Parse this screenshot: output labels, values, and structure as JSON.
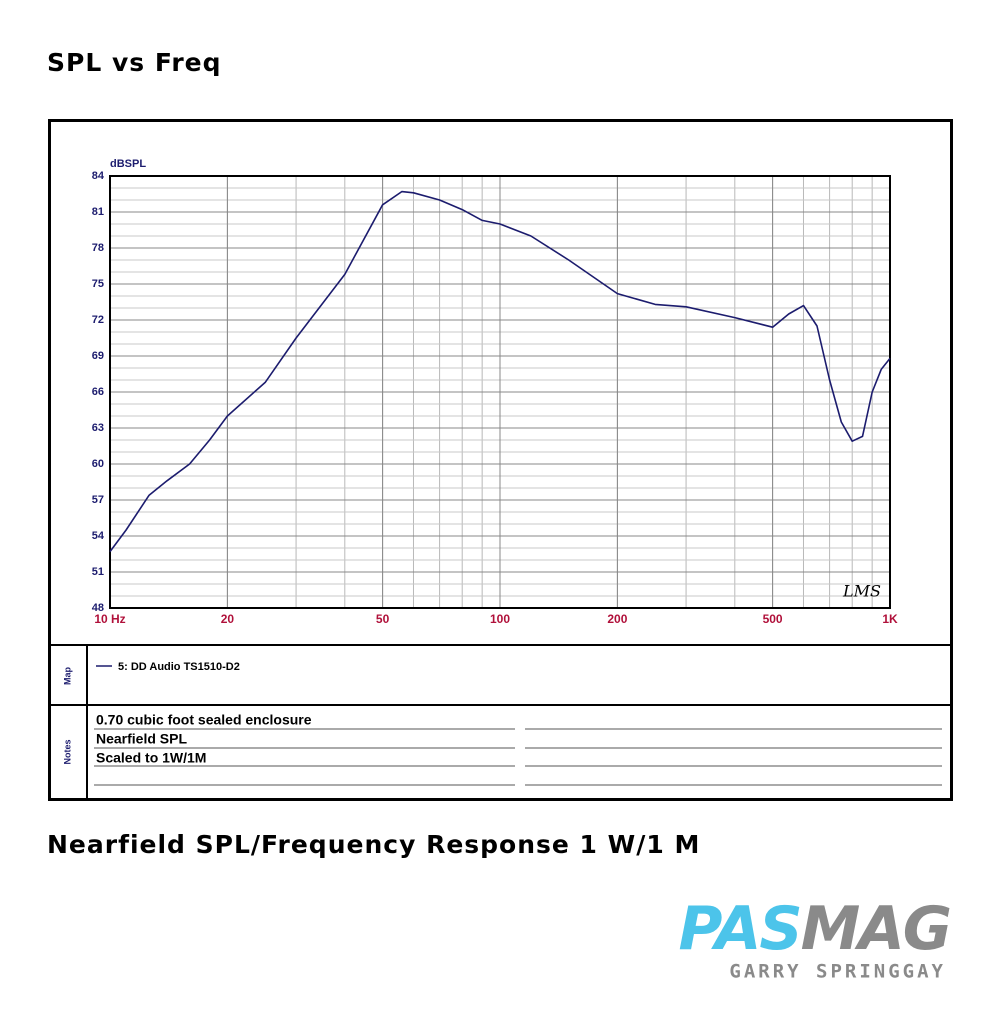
{
  "heading": "SPL vs Freq",
  "caption": "Nearfield SPL/Frequency Response 1 W/1 M",
  "logo": {
    "left": "PAS",
    "right": "MAG",
    "credit": "GARRY SPRINGGAY"
  },
  "chart_data": {
    "type": "line",
    "ylabel": "dBSPL",
    "xscale": "log",
    "grid": true,
    "xlim": [
      10,
      1000
    ],
    "ylim": [
      48,
      84
    ],
    "xticks": [
      {
        "value": 10,
        "label": "10 Hz"
      },
      20,
      50,
      100,
      200,
      500,
      {
        "value": 1000,
        "label": "1K"
      }
    ],
    "yticks": [
      48,
      51,
      54,
      57,
      60,
      63,
      66,
      69,
      72,
      75,
      78,
      81,
      84
    ],
    "x": [
      10,
      11,
      12.6,
      14,
      16,
      18,
      20,
      25,
      30,
      40,
      50,
      56,
      60,
      70,
      80,
      90,
      100,
      120,
      150,
      200,
      250,
      300,
      400,
      500,
      550,
      600,
      650,
      700,
      750,
      800,
      850,
      900,
      950,
      1000
    ],
    "series": [
      {
        "name": "5: DD Audio TS1510-D2",
        "color": "#1c1c6e",
        "values": [
          52.7,
          54.5,
          57.4,
          58.6,
          60,
          62,
          64,
          66.8,
          70.5,
          75.8,
          81.6,
          82.7,
          82.6,
          82,
          81.2,
          80.3,
          80,
          79,
          77,
          74.2,
          73.3,
          73.1,
          72.2,
          71.4,
          72.5,
          73.2,
          71.5,
          67,
          63.5,
          61.9,
          62.3,
          66,
          67.9,
          68.8
        ]
      }
    ],
    "annotation": "LMS",
    "map_label": "Map",
    "notes_label": "Notes",
    "notes": [
      "0.70 cubic foot sealed enclosure",
      "Nearfield SPL",
      "Scaled to 1W/1M"
    ]
  }
}
